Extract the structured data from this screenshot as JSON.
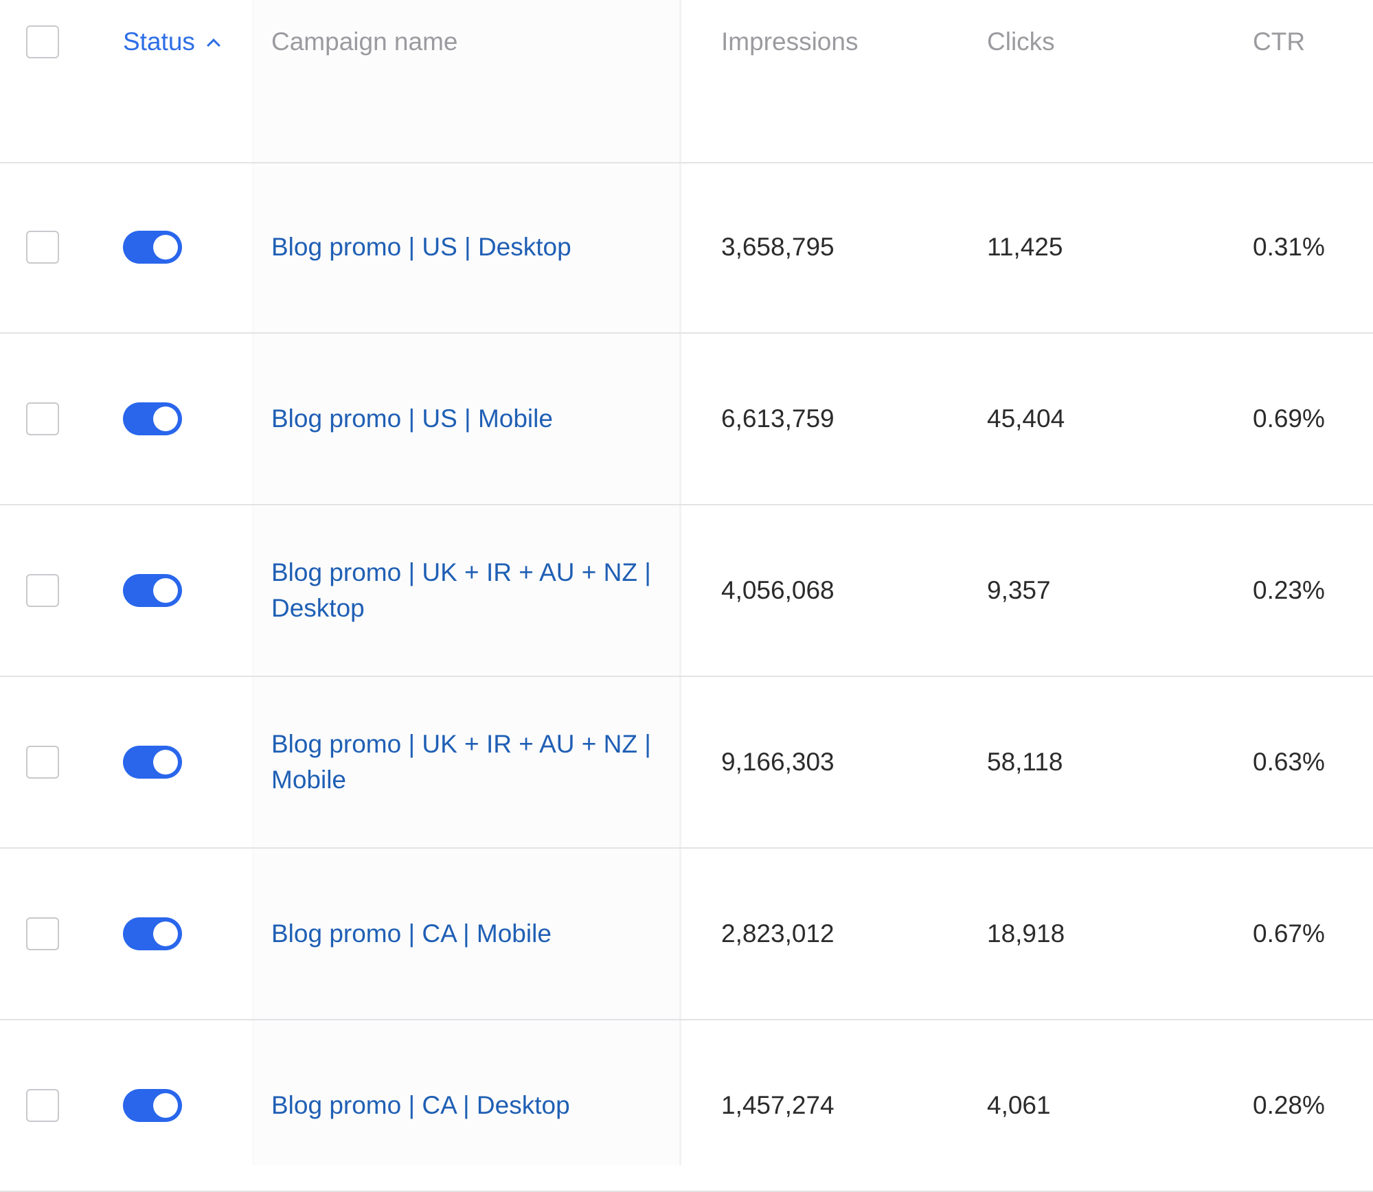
{
  "header": {
    "status_label": "Status",
    "campaign_label": "Campaign name",
    "impressions_label": "Impressions",
    "clicks_label": "Clicks",
    "ctr_label": "CTR"
  },
  "rows": [
    {
      "enabled": true,
      "name": "Blog promo | US | Desktop",
      "impressions": "3,658,795",
      "clicks": "11,425",
      "ctr": "0.31%"
    },
    {
      "enabled": true,
      "name": "Blog promo | US | Mobile",
      "impressions": "6,613,759",
      "clicks": "45,404",
      "ctr": "0.69%"
    },
    {
      "enabled": true,
      "name": "Blog promo | UK + IR + AU + NZ | Desktop",
      "impressions": "4,056,068",
      "clicks": "9,357",
      "ctr": "0.23%"
    },
    {
      "enabled": true,
      "name": "Blog promo | UK + IR + AU + NZ | Mobile",
      "impressions": "9,166,303",
      "clicks": "58,118",
      "ctr": "0.63%"
    },
    {
      "enabled": true,
      "name": "Blog promo | CA | Mobile",
      "impressions": "2,823,012",
      "clicks": "18,918",
      "ctr": "0.67%"
    },
    {
      "enabled": true,
      "name": "Blog promo | CA | Desktop",
      "impressions": "1,457,274",
      "clicks": "4,061",
      "ctr": "0.28%"
    }
  ],
  "colors": {
    "accent": "#2966ec",
    "link": "#1f5fb4",
    "header_text": "#9b9b9f",
    "divider": "#e3e3e6"
  },
  "icons": {
    "sort": "chevron-up-icon"
  }
}
